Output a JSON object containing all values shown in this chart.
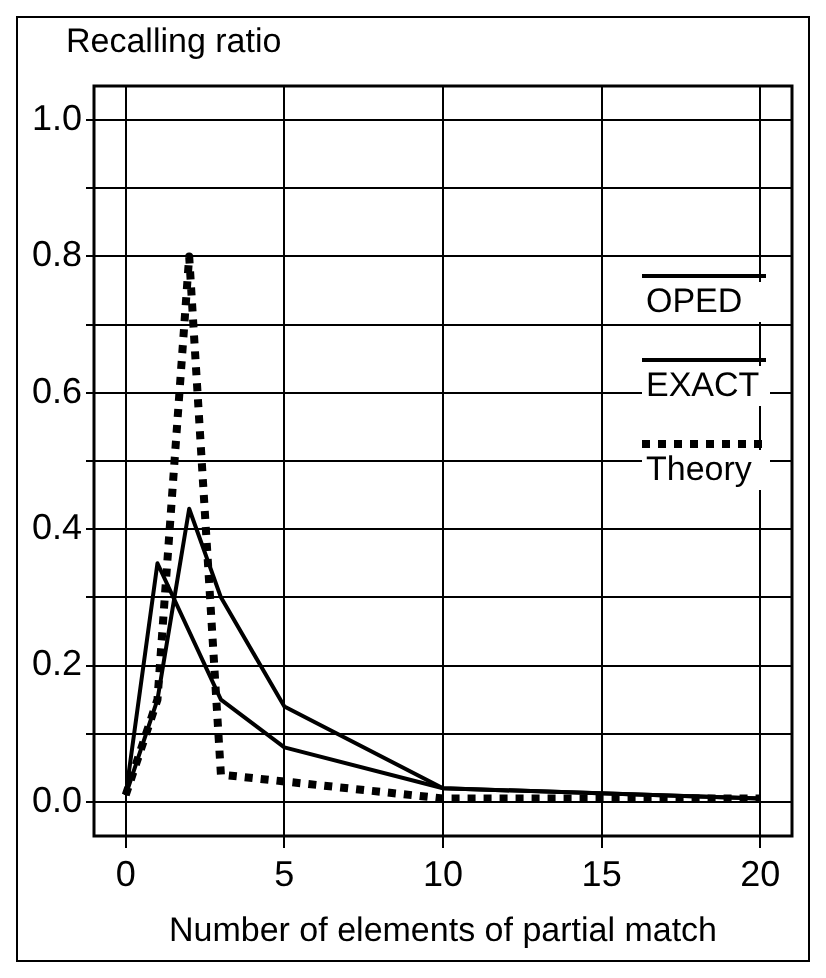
{
  "chart_data": {
    "type": "line",
    "ylabel": "Recalling ratio",
    "xlabel": "Number of elements of partial match",
    "xlim": [
      -1,
      21
    ],
    "xticks": [
      0,
      5,
      10,
      15,
      20
    ],
    "ylim": [
      -0.05,
      1.05
    ],
    "yticks": [
      {
        "value": 0,
        "label": "0.0"
      },
      {
        "value": 0.1,
        "label": null
      },
      0.2,
      {
        "value": 0.3,
        "label": null
      },
      0.4,
      {
        "value": 0.5,
        "label": null
      },
      0.6,
      {
        "value": 0.7,
        "label": null
      },
      0.8,
      {
        "value": 0.9,
        "label": null
      },
      {
        "value": 1,
        "label": "1.0"
      }
    ],
    "grid": true,
    "legend": "right",
    "marker": "none",
    "series": [
      {
        "name": "OPED",
        "color": "#000000",
        "line_style": "solid",
        "x": [
          0,
          1,
          2,
          3,
          5,
          10,
          20
        ],
        "values": [
          0.01,
          0.15,
          0.43,
          0.3,
          0.14,
          0.02,
          0.005
        ]
      },
      {
        "name": "EXACT",
        "color": "#000000",
        "line_style": "solid",
        "x": [
          0,
          1,
          3,
          5,
          10,
          20
        ],
        "values": [
          0.01,
          0.35,
          0.15,
          0.08,
          0.02,
          0.005
        ]
      },
      {
        "name": "Theory",
        "color": "#000000",
        "line_style": "dotted",
        "x": [
          0,
          1,
          2,
          3,
          5,
          10,
          20
        ],
        "values": [
          0.01,
          0.15,
          0.8,
          0.04,
          0.03,
          0.005,
          0.005
        ]
      }
    ]
  }
}
